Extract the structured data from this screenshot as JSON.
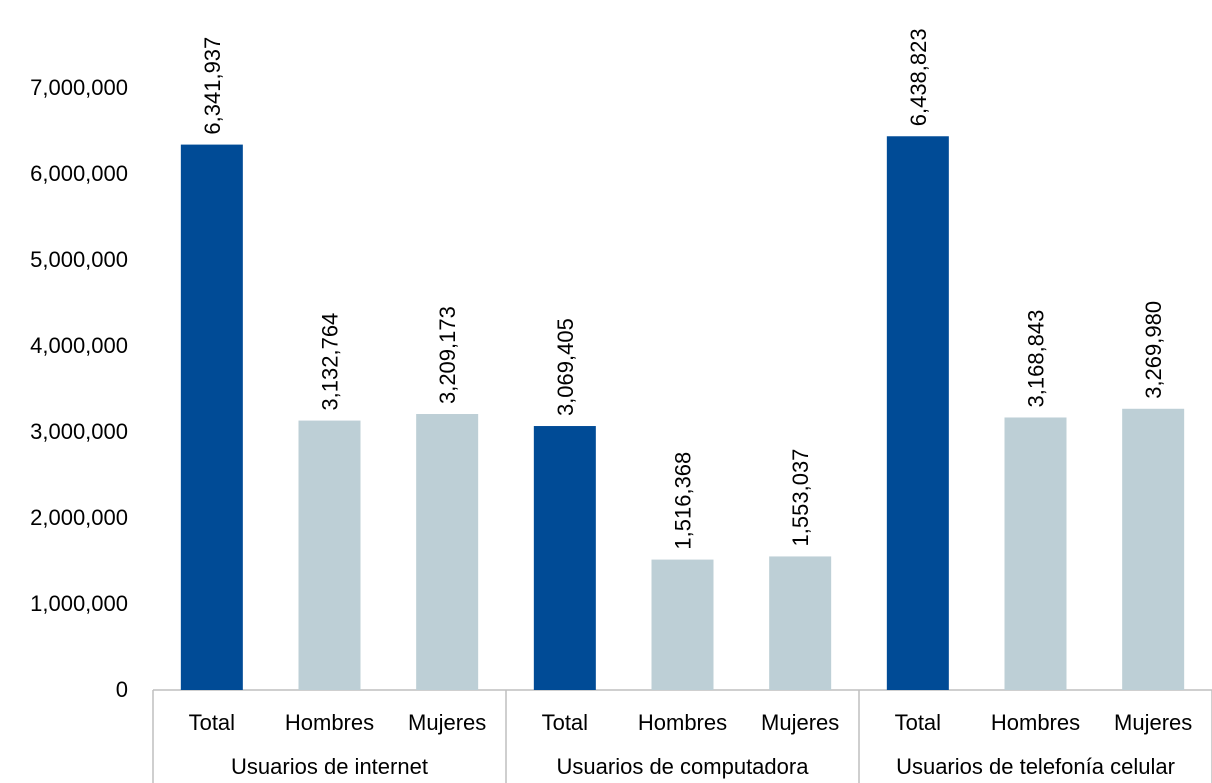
{
  "chart_data": {
    "type": "bar",
    "title": "",
    "xlabel": "",
    "ylabel": "",
    "ylim": [
      0,
      7000000
    ],
    "yticks": [
      0,
      1000000,
      2000000,
      3000000,
      4000000,
      5000000,
      6000000,
      7000000
    ],
    "ytick_labels": [
      "0",
      "1,000,000",
      "2,000,000",
      "3,000,000",
      "4,000,000",
      "5,000,000",
      "6,000,000",
      "7,000,000"
    ],
    "grid": false,
    "legend": "none",
    "colors": {
      "total": "#004B96",
      "subgroup": "#BDCFD6",
      "axis": "#BFBFBF"
    },
    "groups": [
      {
        "label": "Usuarios de internet",
        "bars": [
          {
            "category": "Total",
            "value": 6341937,
            "label": "6,341,937",
            "kind": "total"
          },
          {
            "category": "Hombres",
            "value": 3132764,
            "label": "3,132,764",
            "kind": "subgroup"
          },
          {
            "category": "Mujeres",
            "value": 3209173,
            "label": "3,209,173",
            "kind": "subgroup"
          }
        ]
      },
      {
        "label": "Usuarios de computadora",
        "bars": [
          {
            "category": "Total",
            "value": 3069405,
            "label": "3,069,405",
            "kind": "total"
          },
          {
            "category": "Hombres",
            "value": 1516368,
            "label": "1,516,368",
            "kind": "subgroup"
          },
          {
            "category": "Mujeres",
            "value": 1553037,
            "label": "1,553,037",
            "kind": "subgroup"
          }
        ]
      },
      {
        "label": "Usuarios de telefonía celular",
        "bars": [
          {
            "category": "Total",
            "value": 6438823,
            "label": "6,438,823",
            "kind": "total"
          },
          {
            "category": "Hombres",
            "value": 3168843,
            "label": "3,168,843",
            "kind": "subgroup"
          },
          {
            "category": "Mujeres",
            "value": 3269980,
            "label": "3,269,980",
            "kind": "subgroup"
          }
        ]
      }
    ]
  }
}
